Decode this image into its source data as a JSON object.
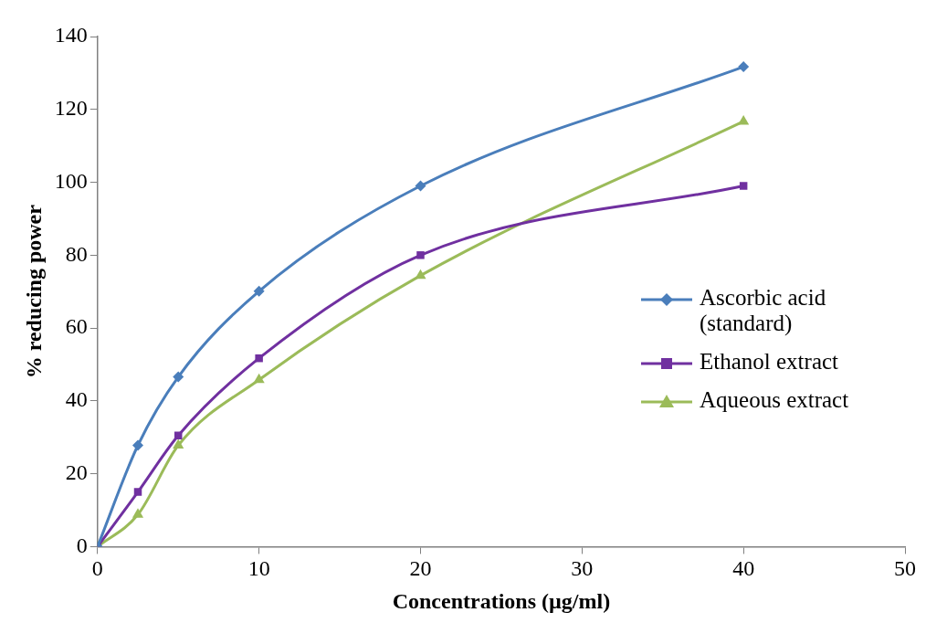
{
  "chart_data": {
    "type": "line",
    "xlabel": "Concentrations (µg/ml)",
    "ylabel": "% reducing power",
    "xlim": [
      0,
      50
    ],
    "xticks": [
      0,
      10,
      20,
      30,
      40,
      50
    ],
    "ylim": [
      0,
      140
    ],
    "yticks": [
      0,
      20,
      40,
      60,
      80,
      100,
      120,
      140
    ],
    "x": [
      0,
      2.5,
      5,
      10,
      20,
      40
    ],
    "grid": false,
    "legend": "right",
    "series": [
      {
        "name": "Ascorbic acid (standard)",
        "color": "#4a7ebb",
        "marker": "diamond",
        "values": [
          0,
          27.8,
          46.6,
          70.1,
          99,
          131.7
        ]
      },
      {
        "name": "Ethanol extract",
        "color": "#7030a0",
        "marker": "square",
        "values": [
          0,
          15,
          30.5,
          51.7,
          80,
          99
        ]
      },
      {
        "name": "Aqueous extract",
        "color": "#9bbb59",
        "marker": "triangle",
        "values": [
          0,
          8.8,
          27.8,
          45.8,
          74.4,
          116.7
        ]
      }
    ]
  }
}
